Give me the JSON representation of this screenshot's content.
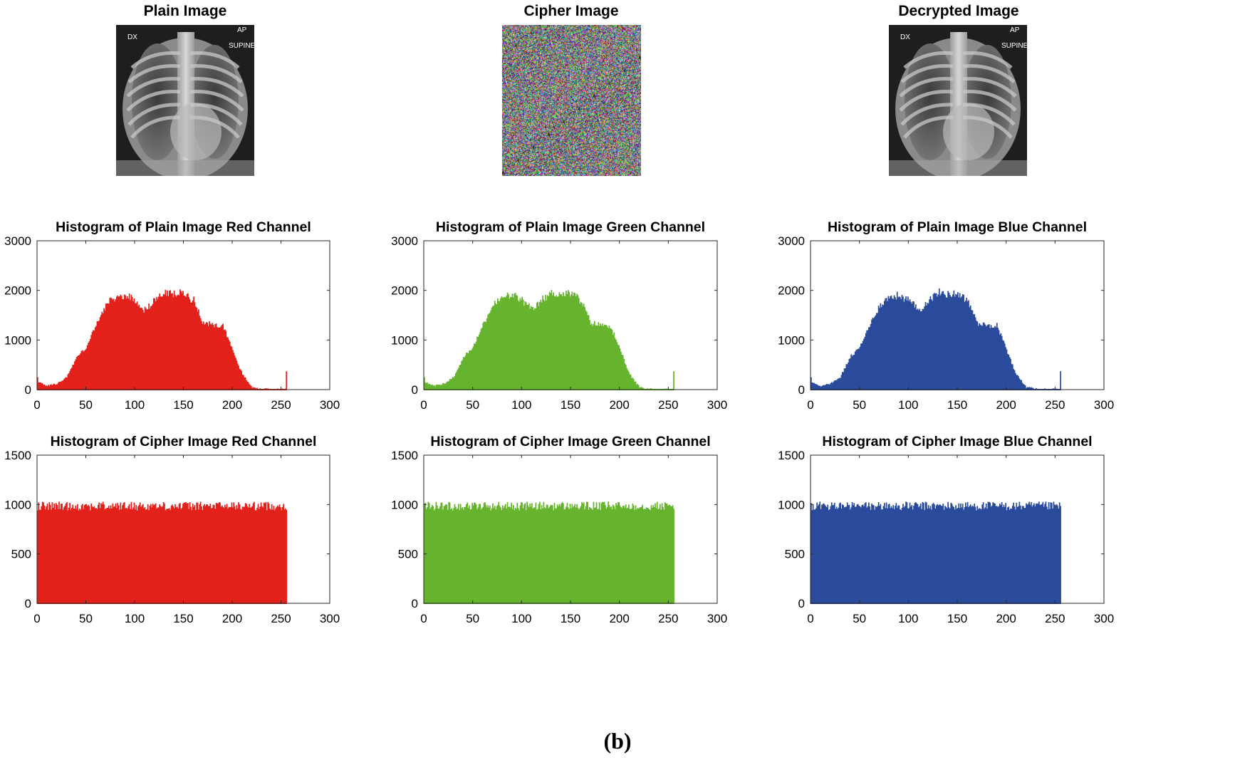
{
  "figure": {
    "caption": "(b)",
    "images": [
      {
        "id": "plain",
        "title": "Plain Image",
        "overlay": [
          "DX",
          "AP",
          "SUPINE"
        ]
      },
      {
        "id": "cipher",
        "title": "Cipher Image",
        "overlay": []
      },
      {
        "id": "decrypted",
        "title": "Decrypted Image",
        "overlay": [
          "DX",
          "AP",
          "SUPINE"
        ]
      }
    ]
  },
  "chart_data": [
    {
      "type": "bar",
      "title": "Histogram of Plain Image Red Channel",
      "channel": "red",
      "color": "#e3211b",
      "xlim": [
        0,
        300
      ],
      "ylim": [
        0,
        3000
      ],
      "xticks": [
        0,
        50,
        100,
        150,
        200,
        250,
        300
      ],
      "yticks": [
        0,
        1000,
        2000,
        3000
      ],
      "profile": [
        [
          0,
          150
        ],
        [
          10,
          80
        ],
        [
          20,
          120
        ],
        [
          30,
          250
        ],
        [
          40,
          650
        ],
        [
          50,
          850
        ],
        [
          60,
          1300
        ],
        [
          70,
          1700
        ],
        [
          80,
          1850
        ],
        [
          90,
          1900
        ],
        [
          100,
          1800
        ],
        [
          110,
          1600
        ],
        [
          120,
          1800
        ],
        [
          130,
          1950
        ],
        [
          140,
          1920
        ],
        [
          150,
          1950
        ],
        [
          160,
          1800
        ],
        [
          170,
          1350
        ],
        [
          180,
          1300
        ],
        [
          190,
          1300
        ],
        [
          200,
          800
        ],
        [
          210,
          300
        ],
        [
          220,
          50
        ],
        [
          230,
          10
        ],
        [
          240,
          5
        ],
        [
          250,
          5
        ]
      ],
      "spikes": [
        [
          0,
          250
        ],
        [
          255,
          370
        ]
      ]
    },
    {
      "type": "bar",
      "title": "Histogram of Plain Image Green Channel",
      "channel": "green",
      "color": "#66b32e",
      "xlim": [
        0,
        300
      ],
      "ylim": [
        0,
        3000
      ],
      "xticks": [
        0,
        50,
        100,
        150,
        200,
        250,
        300
      ],
      "yticks": [
        0,
        1000,
        2000,
        3000
      ],
      "profile": [
        [
          0,
          150
        ],
        [
          10,
          80
        ],
        [
          20,
          120
        ],
        [
          30,
          250
        ],
        [
          40,
          650
        ],
        [
          50,
          850
        ],
        [
          60,
          1300
        ],
        [
          70,
          1700
        ],
        [
          80,
          1850
        ],
        [
          90,
          1900
        ],
        [
          100,
          1800
        ],
        [
          110,
          1600
        ],
        [
          120,
          1800
        ],
        [
          130,
          1950
        ],
        [
          140,
          1920
        ],
        [
          150,
          1950
        ],
        [
          160,
          1800
        ],
        [
          170,
          1350
        ],
        [
          180,
          1300
        ],
        [
          190,
          1300
        ],
        [
          200,
          800
        ],
        [
          210,
          300
        ],
        [
          220,
          50
        ],
        [
          230,
          10
        ],
        [
          240,
          5
        ],
        [
          250,
          5
        ]
      ],
      "spikes": [
        [
          0,
          250
        ],
        [
          255,
          370
        ]
      ]
    },
    {
      "type": "bar",
      "title": "Histogram of Plain Image Blue Channel",
      "channel": "blue",
      "color": "#2a4b9b",
      "xlim": [
        0,
        300
      ],
      "ylim": [
        0,
        3000
      ],
      "xticks": [
        0,
        50,
        100,
        150,
        200,
        250,
        300
      ],
      "yticks": [
        0,
        1000,
        2000,
        3000
      ],
      "profile": [
        [
          0,
          150
        ],
        [
          10,
          80
        ],
        [
          20,
          120
        ],
        [
          30,
          250
        ],
        [
          40,
          650
        ],
        [
          50,
          850
        ],
        [
          60,
          1300
        ],
        [
          70,
          1700
        ],
        [
          80,
          1850
        ],
        [
          90,
          1900
        ],
        [
          100,
          1800
        ],
        [
          110,
          1600
        ],
        [
          120,
          1800
        ],
        [
          130,
          1950
        ],
        [
          140,
          1920
        ],
        [
          150,
          1950
        ],
        [
          160,
          1800
        ],
        [
          170,
          1350
        ],
        [
          180,
          1300
        ],
        [
          190,
          1300
        ],
        [
          200,
          800
        ],
        [
          210,
          300
        ],
        [
          220,
          50
        ],
        [
          230,
          10
        ],
        [
          240,
          5
        ],
        [
          250,
          5
        ]
      ],
      "spikes": [
        [
          0,
          250
        ],
        [
          255,
          370
        ]
      ]
    },
    {
      "type": "bar",
      "title": "Histogram of Cipher Image Red Channel",
      "channel": "red",
      "color": "#e3211b",
      "xlim": [
        0,
        300
      ],
      "ylim": [
        0,
        1500
      ],
      "xticks": [
        0,
        50,
        100,
        150,
        200,
        250,
        300
      ],
      "yticks": [
        0,
        500,
        1000,
        1500
      ],
      "uniform_level": 1000,
      "uniform_range": [
        0,
        255
      ]
    },
    {
      "type": "bar",
      "title": "Histogram of Cipher Image Green Channel",
      "channel": "green",
      "color": "#66b32e",
      "xlim": [
        0,
        300
      ],
      "ylim": [
        0,
        1500
      ],
      "xticks": [
        0,
        50,
        100,
        150,
        200,
        250,
        300
      ],
      "yticks": [
        0,
        500,
        1000,
        1500
      ],
      "uniform_level": 1000,
      "uniform_range": [
        0,
        255
      ]
    },
    {
      "type": "bar",
      "title": "Histogram of Cipher Image Blue Channel",
      "channel": "blue",
      "color": "#2a4b9b",
      "xlim": [
        0,
        300
      ],
      "ylim": [
        0,
        1500
      ],
      "xticks": [
        0,
        50,
        100,
        150,
        200,
        250,
        300
      ],
      "yticks": [
        0,
        500,
        1000,
        1500
      ],
      "uniform_level": 1000,
      "uniform_range": [
        0,
        255
      ]
    }
  ]
}
